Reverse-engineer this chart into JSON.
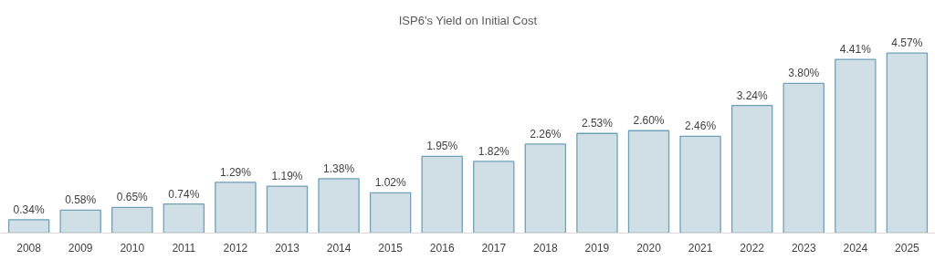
{
  "chart_data": {
    "type": "bar",
    "title": "ISP6's Yield on Initial Cost",
    "categories": [
      "2008",
      "2009",
      "2010",
      "2011",
      "2012",
      "2013",
      "2014",
      "2015",
      "2016",
      "2017",
      "2018",
      "2019",
      "2020",
      "2021",
      "2022",
      "2023",
      "2024",
      "2025"
    ],
    "values": [
      0.34,
      0.58,
      0.65,
      0.74,
      1.29,
      1.19,
      1.38,
      1.02,
      1.95,
      1.82,
      2.26,
      2.53,
      2.6,
      2.46,
      3.24,
      3.8,
      4.41,
      4.57
    ],
    "value_labels": [
      "0.34%",
      "0.58%",
      "0.65%",
      "0.74%",
      "1.29%",
      "1.19%",
      "1.38%",
      "1.02%",
      "1.95%",
      "1.82%",
      "2.26%",
      "2.53%",
      "2.60%",
      "2.46%",
      "3.24%",
      "3.80%",
      "4.41%",
      "4.57%"
    ],
    "color": "#d0dee5"
  }
}
